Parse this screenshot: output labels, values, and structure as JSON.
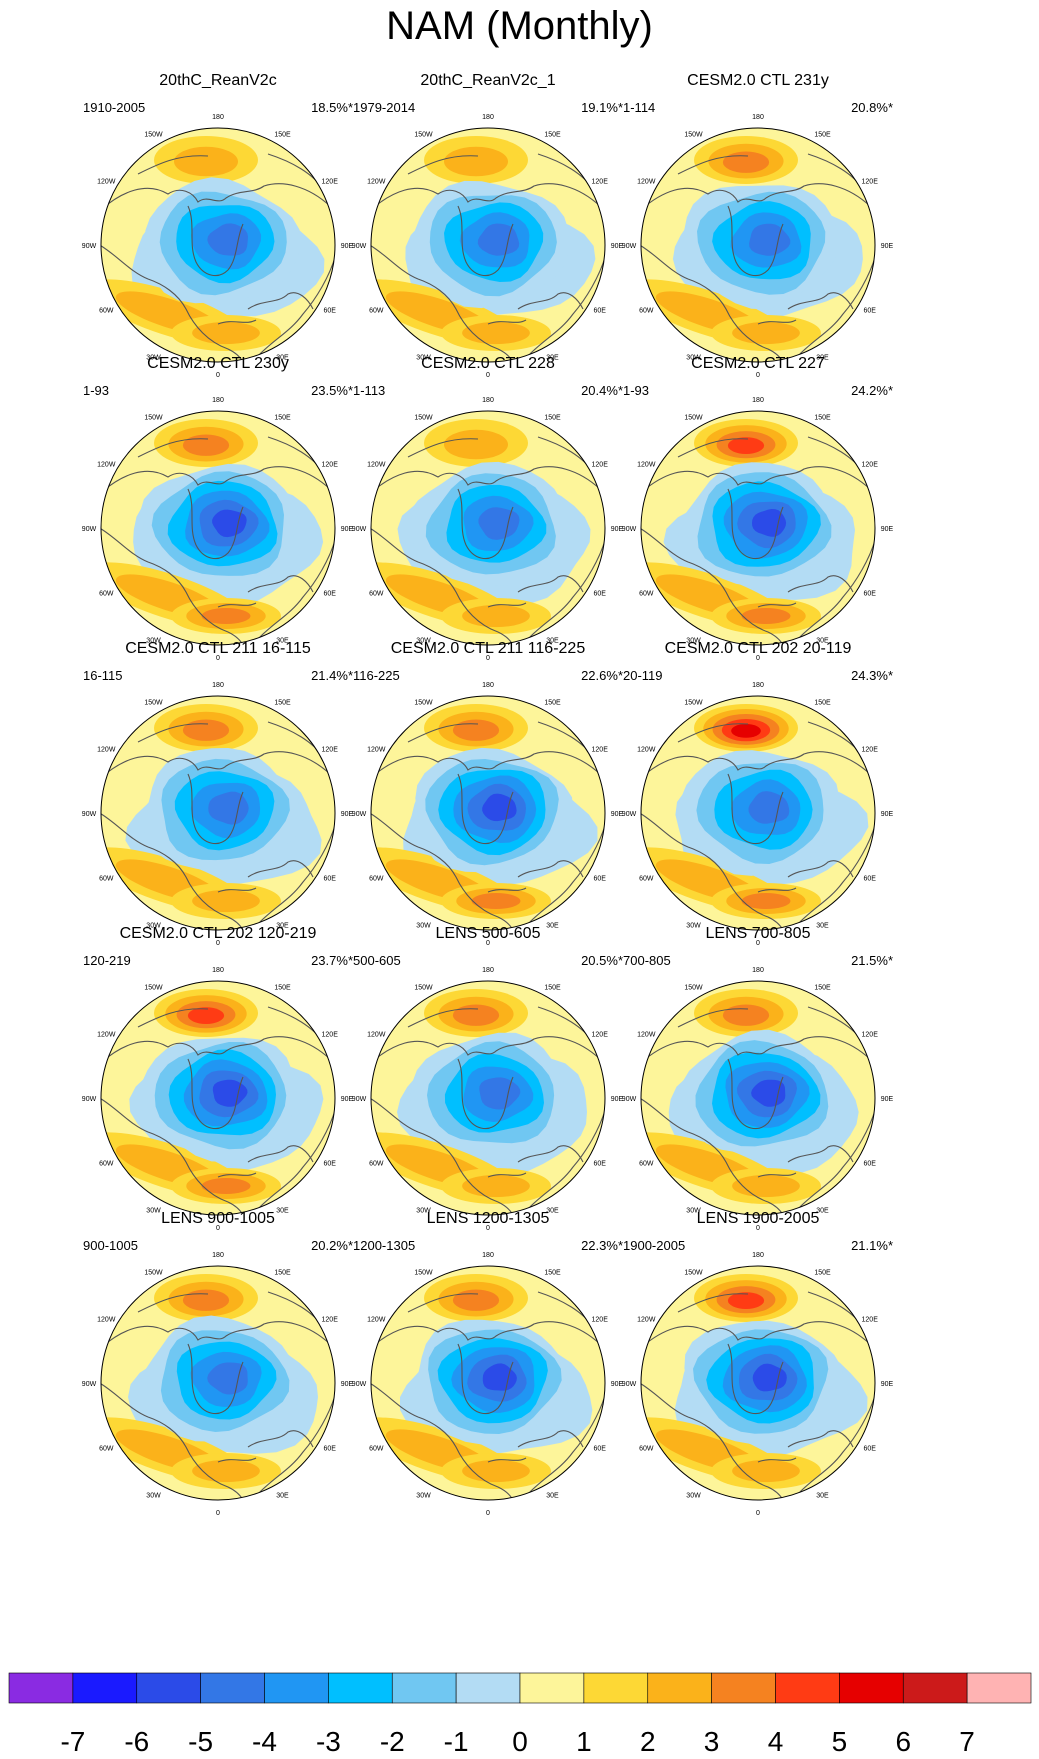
{
  "figure_title": "NAM (Monthly)",
  "colors": {
    "bins": [
      "#8a2be2",
      "#1a1aff",
      "#2b4be8",
      "#3377e6",
      "#2096f3",
      "#00bfff",
      "#70c7f2",
      "#b3dcf4",
      "#fdf59a",
      "#fdd835",
      "#fbb21a",
      "#f58220",
      "#ff3b14",
      "#e60000",
      "#cc1a1a",
      "#ffb3b3"
    ],
    "coast": "#555555",
    "ring": "#000000"
  },
  "chart_data": {
    "type": "heatmap",
    "title": "NAM (Monthly)",
    "projection": "north polar stereographic",
    "lon_labels": [
      "180",
      "150E",
      "120E",
      "90E",
      "60E",
      "30E",
      "0",
      "30W",
      "60W",
      "90W",
      "120W",
      "150W"
    ],
    "colorbar": {
      "levels": [
        -7,
        -6,
        -5,
        -4,
        -3,
        -2,
        -1,
        0,
        1,
        2,
        3,
        4,
        5,
        6,
        7
      ],
      "tick_labels": [
        "-7",
        "-6",
        "-5",
        "-4",
        "-3",
        "-2",
        "-1",
        "0",
        "1",
        "2",
        "3",
        "4",
        "5",
        "6",
        "7"
      ]
    },
    "panels": [
      {
        "title": "20thC_ReanV2c",
        "years": "1910-2005",
        "variance": "18.5%*",
        "low": -5,
        "pac": 2,
        "atl": 2,
        "eur": 2
      },
      {
        "title": "20thC_ReanV2c_1",
        "years": "1979-2014",
        "variance": "19.1%*",
        "low": -5,
        "pac": 2,
        "atl": 2,
        "eur": 2
      },
      {
        "title": "CESM2.0 CTL 231y",
        "years": "1-114",
        "variance": "20.8%*",
        "low": -5,
        "pac": 3,
        "atl": 2,
        "eur": 2
      },
      {
        "title": "CESM2.0 CTL 230y",
        "years": "1-93",
        "variance": "23.5%*",
        "low": -6,
        "pac": 3,
        "atl": 2,
        "eur": 3
      },
      {
        "title": "CESM2.0 CTL 228",
        "years": "1-113",
        "variance": "20.4%*",
        "low": -5,
        "pac": 2,
        "atl": 2,
        "eur": 2
      },
      {
        "title": "CESM2.0 CTL 227",
        "years": "1-93",
        "variance": "24.2%*",
        "low": -6,
        "pac": 4,
        "atl": 2,
        "eur": 3
      },
      {
        "title": "CESM2.0 CTL 211 16-115",
        "years": "16-115",
        "variance": "21.4%*",
        "low": -5,
        "pac": 3,
        "atl": 2,
        "eur": 2
      },
      {
        "title": "CESM2.0 CTL 211 116-225",
        "years": "116-225",
        "variance": "22.6%*",
        "low": -6,
        "pac": 3,
        "atl": 2,
        "eur": 3
      },
      {
        "title": "CESM2.0 CTL 202 20-119",
        "years": "20-119",
        "variance": "24.3%*",
        "low": -5,
        "pac": 5,
        "atl": 2,
        "eur": 3
      },
      {
        "title": "CESM2.0 CTL 202 120-219",
        "years": "120-219",
        "variance": "23.7%*",
        "low": -6,
        "pac": 4,
        "atl": 2,
        "eur": 3
      },
      {
        "title": "LENS 500-605",
        "years": "500-605",
        "variance": "20.5%*",
        "low": -5,
        "pac": 3,
        "atl": 2,
        "eur": 2
      },
      {
        "title": "LENS 700-805",
        "years": "700-805",
        "variance": "21.5%*",
        "low": -6,
        "pac": 3,
        "atl": 2,
        "eur": 2
      },
      {
        "title": "LENS 900-1005",
        "years": "900-1005",
        "variance": "20.2%*",
        "low": -5,
        "pac": 3,
        "atl": 2,
        "eur": 2
      },
      {
        "title": "LENS 1200-1305",
        "years": "1200-1305",
        "variance": "22.3%*",
        "low": -6,
        "pac": 3,
        "atl": 2,
        "eur": 2
      },
      {
        "title": "LENS 1900-2005",
        "years": "1900-2005",
        "variance": "21.1%*",
        "low": -6,
        "pac": 4,
        "atl": 2,
        "eur": 2
      }
    ]
  }
}
